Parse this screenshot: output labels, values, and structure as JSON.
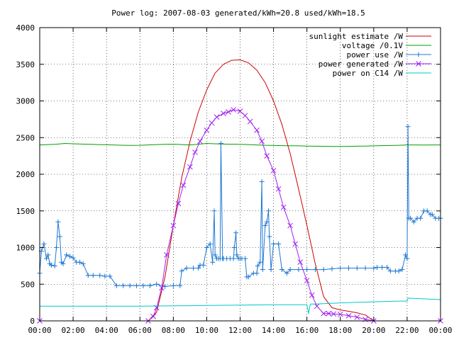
{
  "chart_data": {
    "type": "line",
    "title": "Power log: 2007-08-03 generated/kWh=20.8 used/kWh=18.5",
    "xlabel": "",
    "ylabel": "",
    "xlim": [
      0,
      24
    ],
    "ylim": [
      0,
      4000
    ],
    "grid": true,
    "legend_position": "top-right",
    "x_ticks": [
      "00:00",
      "02:00",
      "04:00",
      "06:00",
      "08:00",
      "10:00",
      "12:00",
      "14:00",
      "16:00",
      "18:00",
      "20:00",
      "22:00",
      "00:00"
    ],
    "y_ticks": [
      "0",
      "500",
      "1000",
      "1500",
      "2000",
      "2500",
      "3000",
      "3500",
      "4000"
    ],
    "series": [
      {
        "name": "sunlight estimate /W",
        "color": "#cc0000",
        "marker": "none",
        "x": [
          0,
          6.5,
          7,
          7.5,
          8,
          8.5,
          9,
          9.5,
          10,
          10.5,
          11,
          11.5,
          12,
          12.5,
          13,
          13.5,
          14,
          14.5,
          15,
          15.5,
          16,
          16.5,
          17,
          17.5,
          18,
          18.5,
          19,
          19.5,
          20,
          24
        ],
        "y": [
          0,
          0,
          120,
          600,
          1300,
          1950,
          2450,
          2850,
          3150,
          3380,
          3500,
          3555,
          3560,
          3520,
          3420,
          3250,
          3000,
          2680,
          2280,
          1800,
          1300,
          780,
          330,
          180,
          150,
          130,
          110,
          80,
          0,
          0
        ]
      },
      {
        "name": "voltage /0.1V",
        "color": "#00a000",
        "marker": "none",
        "x": [
          0,
          0.5,
          1,
          1.5,
          2,
          2.5,
          3,
          3.5,
          4,
          4.5,
          5,
          5.5,
          6,
          6.5,
          7,
          7.5,
          8,
          8.5,
          9,
          9.5,
          10,
          10.5,
          11,
          11.5,
          12,
          12.5,
          13,
          13.5,
          14,
          14.5,
          15,
          15.5,
          16,
          16.5,
          17,
          17.5,
          18,
          18.5,
          19,
          19.5,
          20,
          20.5,
          21,
          21.5,
          22,
          22.5,
          23,
          23.5,
          24
        ],
        "y": [
          2400,
          2405,
          2410,
          2420,
          2415,
          2412,
          2408,
          2405,
          2402,
          2398,
          2395,
          2393,
          2395,
          2400,
          2405,
          2408,
          2410,
          2405,
          2400,
          2410,
          2420,
          2415,
          2412,
          2410,
          2408,
          2405,
          2400,
          2395,
          2392,
          2390,
          2388,
          2387,
          2385,
          2383,
          2382,
          2380,
          2380,
          2381,
          2383,
          2385,
          2387,
          2390,
          2392,
          2395,
          2400,
          2400,
          2398,
          2400,
          2400
        ]
      },
      {
        "name": "power use /W",
        "color": "#1e78d2",
        "marker": "+",
        "x": [
          0,
          0.1,
          0.25,
          0.4,
          0.5,
          0.6,
          0.7,
          0.9,
          1.0,
          1.1,
          1.2,
          1.3,
          1.4,
          1.6,
          1.8,
          2.0,
          2.2,
          2.4,
          2.6,
          2.9,
          3.2,
          3.6,
          3.9,
          4.2,
          4.6,
          5.0,
          5.4,
          5.8,
          6.2,
          6.6,
          7.0,
          7.5,
          8.0,
          8.4,
          8.5,
          8.8,
          9.2,
          9.5,
          9.6,
          9.8,
          10.0,
          10.2,
          10.35,
          10.45,
          10.5,
          10.6,
          10.7,
          10.8,
          10.85,
          10.95,
          11.0,
          11.2,
          11.4,
          11.6,
          11.65,
          11.75,
          11.8,
          11.9,
          12.0,
          12.1,
          12.3,
          12.4,
          12.5,
          12.8,
          13.0,
          13.05,
          13.2,
          13.3,
          13.35,
          13.5,
          13.6,
          13.7,
          13.75,
          13.85,
          14.0,
          14.3,
          14.5,
          14.8,
          15.0,
          15.5,
          16.0,
          16.5,
          17.0,
          17.5,
          18.0,
          18.5,
          19.0,
          19.5,
          20.0,
          20.2,
          20.5,
          20.8,
          21.0,
          21.3,
          21.5,
          21.7,
          21.9,
          22.0,
          22.05,
          22.1,
          22.2,
          22.4,
          22.6,
          22.8,
          23.0,
          23.2,
          23.4,
          23.5,
          23.7,
          23.9,
          24.0
        ],
        "y": [
          650,
          950,
          1050,
          850,
          900,
          780,
          760,
          750,
          1000,
          1350,
          1150,
          800,
          780,
          900,
          880,
          860,
          800,
          800,
          780,
          620,
          620,
          620,
          610,
          610,
          480,
          480,
          480,
          480,
          480,
          480,
          500,
          470,
          480,
          480,
          680,
          720,
          720,
          720,
          760,
          760,
          1000,
          1050,
          800,
          1500,
          900,
          850,
          850,
          850,
          2420,
          850,
          850,
          850,
          850,
          850,
          1000,
          1200,
          900,
          850,
          850,
          850,
          850,
          600,
          600,
          650,
          650,
          750,
          800,
          1900,
          700,
          1300,
          1350,
          1500,
          1150,
          700,
          1050,
          1050,
          700,
          650,
          700,
          700,
          700,
          700,
          700,
          710,
          720,
          720,
          720,
          720,
          720,
          730,
          730,
          730,
          680,
          680,
          680,
          700,
          900,
          850,
          2650,
          1400,
          1400,
          1350,
          1400,
          1400,
          1500,
          1500,
          1450,
          1450,
          1400,
          1400,
          1400
        ]
      },
      {
        "name": "power generated /W",
        "color": "#a020f0",
        "marker": "x",
        "x": [
          0,
          6.5,
          6.8,
          7.0,
          7.3,
          7.6,
          8.0,
          8.3,
          8.6,
          9.0,
          9.3,
          9.6,
          10.0,
          10.3,
          10.6,
          11.0,
          11.3,
          11.6,
          12.0,
          12.3,
          12.6,
          13.0,
          13.3,
          13.6,
          14.0,
          14.3,
          14.6,
          15.0,
          15.3,
          15.6,
          16.0,
          16.3,
          16.6,
          17.0,
          17.3,
          17.6,
          18.0,
          18.5,
          19.0,
          19.5,
          20.0,
          24
        ],
        "y": [
          0,
          0,
          60,
          180,
          450,
          900,
          1300,
          1600,
          1850,
          2100,
          2300,
          2450,
          2600,
          2700,
          2780,
          2830,
          2850,
          2880,
          2860,
          2800,
          2720,
          2600,
          2450,
          2250,
          2050,
          1800,
          1550,
          1300,
          1050,
          800,
          550,
          350,
          200,
          100,
          100,
          95,
          90,
          70,
          50,
          20,
          0,
          0
        ]
      },
      {
        "name": "power on C14 /W",
        "color": "#00c8c8",
        "marker": "none",
        "x": [
          0,
          2,
          4,
          6,
          8,
          10,
          12,
          14,
          16,
          16.1,
          16.2,
          16.5,
          18,
          20,
          21.5,
          22,
          22.05,
          23,
          24
        ],
        "y": [
          200,
          200,
          200,
          200,
          205,
          210,
          215,
          220,
          220,
          100,
          230,
          230,
          245,
          260,
          270,
          270,
          310,
          300,
          290
        ]
      }
    ]
  }
}
